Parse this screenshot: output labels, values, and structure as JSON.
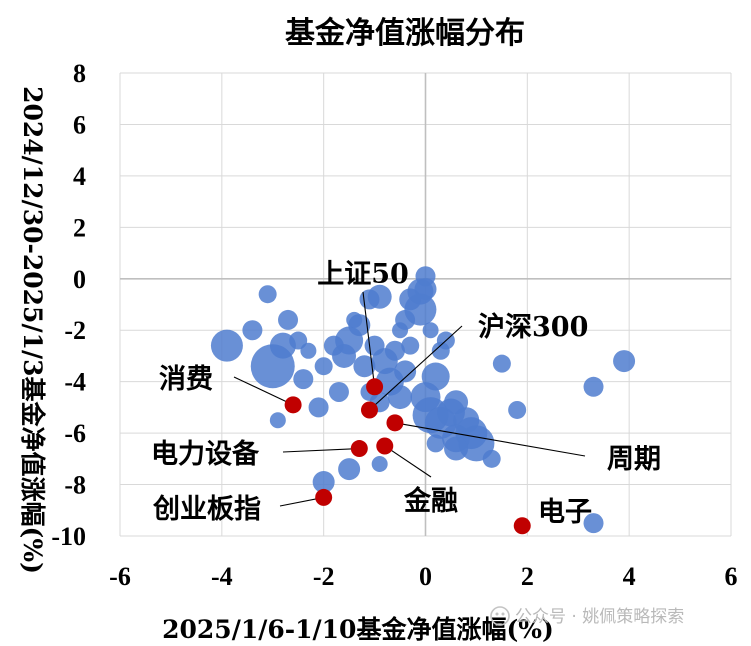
{
  "chart_data": {
    "type": "scatter",
    "title": "基金净值涨幅分布",
    "xlabel": "2025/1/6-1/10基金净值涨幅(%)",
    "ylabel": "2024/12/30-2025/1/3基金净值涨幅(%)",
    "xlim": [
      -6,
      6
    ],
    "ylim": [
      -10,
      8
    ],
    "xticks": [
      -6,
      -4,
      -2,
      0,
      2,
      4,
      6
    ],
    "yticks": [
      8,
      6,
      4,
      2,
      0,
      -2,
      -4,
      -6,
      -8,
      -10
    ],
    "grid": true,
    "colors": {
      "fund": "#4f7ccf",
      "index": "#c00000",
      "grid": "#d9d9d9",
      "axis": "#bfbfbf"
    },
    "series": [
      {
        "values": [
          {
            "x": -3.9,
            "y": -2.6,
            "size": 16
          },
          {
            "x": -3.0,
            "y": -3.4,
            "size": 22
          },
          {
            "x": -2.8,
            "y": -2.6,
            "size": 13
          },
          {
            "x": -2.7,
            "y": -1.6,
            "size": 10
          },
          {
            "x": -3.1,
            "y": -0.6,
            "size": 9
          },
          {
            "x": -3.4,
            "y": -2.0,
            "size": 10
          },
          {
            "x": -2.5,
            "y": -2.4,
            "size": 9
          },
          {
            "x": -2.4,
            "y": -3.9,
            "size": 10
          },
          {
            "x": -2.3,
            "y": -2.8,
            "size": 8
          },
          {
            "x": -2.1,
            "y": -5.0,
            "size": 10
          },
          {
            "x": -2.9,
            "y": -5.5,
            "size": 8
          },
          {
            "x": -2.0,
            "y": -7.9,
            "size": 11
          },
          {
            "x": -1.5,
            "y": -7.4,
            "size": 11
          },
          {
            "x": -0.9,
            "y": -7.2,
            "size": 8
          },
          {
            "x": -1.7,
            "y": -4.4,
            "size": 10
          },
          {
            "x": -2.0,
            "y": -3.4,
            "size": 9
          },
          {
            "x": -1.8,
            "y": -2.6,
            "size": 10
          },
          {
            "x": -1.6,
            "y": -3.0,
            "size": 12
          },
          {
            "x": -1.5,
            "y": -2.4,
            "size": 14
          },
          {
            "x": -1.3,
            "y": -1.8,
            "size": 11
          },
          {
            "x": -1.1,
            "y": -0.8,
            "size": 10
          },
          {
            "x": -0.9,
            "y": -0.7,
            "size": 12
          },
          {
            "x": -1.4,
            "y": -1.6,
            "size": 8
          },
          {
            "x": -1.2,
            "y": -3.4,
            "size": 11
          },
          {
            "x": -1.0,
            "y": -2.6,
            "size": 10
          },
          {
            "x": -0.8,
            "y": -3.2,
            "size": 13
          },
          {
            "x": -0.6,
            "y": -2.8,
            "size": 10
          },
          {
            "x": -0.7,
            "y": -4.0,
            "size": 14
          },
          {
            "x": -0.5,
            "y": -4.6,
            "size": 12
          },
          {
            "x": -0.9,
            "y": -4.8,
            "size": 10
          },
          {
            "x": -1.1,
            "y": -4.4,
            "size": 9
          },
          {
            "x": -0.4,
            "y": -3.6,
            "size": 11
          },
          {
            "x": -0.3,
            "y": -2.6,
            "size": 9
          },
          {
            "x": -0.5,
            "y": -2.0,
            "size": 8
          },
          {
            "x": -0.4,
            "y": -1.6,
            "size": 10
          },
          {
            "x": -0.3,
            "y": -0.8,
            "size": 11
          },
          {
            "x": -0.1,
            "y": -0.5,
            "size": 13
          },
          {
            "x": 0.0,
            "y": -0.4,
            "size": 11
          },
          {
            "x": 0.0,
            "y": 0.1,
            "size": 10
          },
          {
            "x": -0.1,
            "y": -1.2,
            "size": 16
          },
          {
            "x": 0.1,
            "y": -2.0,
            "size": 8
          },
          {
            "x": 0.3,
            "y": -2.8,
            "size": 9
          },
          {
            "x": 0.4,
            "y": -2.4,
            "size": 9
          },
          {
            "x": 0.2,
            "y": -3.8,
            "size": 14
          },
          {
            "x": 0.0,
            "y": -4.6,
            "size": 15
          },
          {
            "x": 0.1,
            "y": -5.3,
            "size": 18
          },
          {
            "x": 0.3,
            "y": -5.6,
            "size": 16
          },
          {
            "x": 0.5,
            "y": -5.2,
            "size": 14
          },
          {
            "x": 0.6,
            "y": -4.8,
            "size": 12
          },
          {
            "x": 0.8,
            "y": -5.5,
            "size": 13
          },
          {
            "x": 0.6,
            "y": -6.2,
            "size": 14
          },
          {
            "x": 0.9,
            "y": -6.0,
            "size": 16
          },
          {
            "x": 1.0,
            "y": -6.4,
            "size": 18
          },
          {
            "x": 0.6,
            "y": -6.6,
            "size": 12
          },
          {
            "x": 0.2,
            "y": -6.4,
            "size": 9
          },
          {
            "x": 1.3,
            "y": -7.0,
            "size": 9
          },
          {
            "x": 1.5,
            "y": -3.3,
            "size": 9
          },
          {
            "x": 1.8,
            "y": -5.1,
            "size": 9
          },
          {
            "x": 3.3,
            "y": -4.2,
            "size": 10
          },
          {
            "x": 3.9,
            "y": -3.2,
            "size": 11
          },
          {
            "x": 3.3,
            "y": -9.5,
            "size": 10
          }
        ]
      },
      {
        "values": [
          {
            "x": -1.0,
            "y": -4.2,
            "label": "上证50"
          },
          {
            "x": -1.1,
            "y": -5.1,
            "label": "沪深300"
          },
          {
            "x": -2.6,
            "y": -4.9,
            "label": "消费"
          },
          {
            "x": -1.3,
            "y": -6.6,
            "label": "电力设备"
          },
          {
            "x": -0.6,
            "y": -5.6,
            "label": "周期"
          },
          {
            "x": -0.8,
            "y": -6.5,
            "label": "金融"
          },
          {
            "x": -2.0,
            "y": -8.5,
            "label": "创业板指"
          },
          {
            "x": 1.9,
            "y": -9.6,
            "label": "电子"
          }
        ]
      }
    ]
  },
  "watermark": "公众号 · 姚佩策略探索"
}
